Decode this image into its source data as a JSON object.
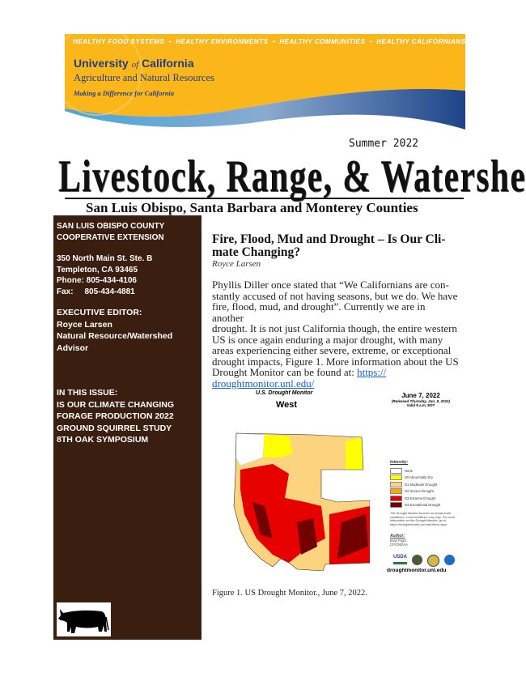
{
  "header": {
    "taglines": [
      "HEALTHY FOOD SYSTEMS",
      "HEALTHY ENVIRONMENTS",
      "HEALTHY COMMUNITIES",
      "HEALTHY CALIFORNIANS"
    ],
    "org_name_part1": "University",
    "org_name_of": "of",
    "org_name_part2": "California",
    "division": "Agriculture and Natural Resources",
    "motto": "Making a Difference for California",
    "colors": {
      "gold": "#fbb71a",
      "blue": "#1f3f86"
    }
  },
  "masthead": {
    "season": "Summer 2022",
    "title": "Livestock, Range, & Watershed",
    "subtitle": "San Luis Obispo, Santa Barbara and Monterey Counties"
  },
  "sidebar": {
    "background": "#3a1e10",
    "office_lines": [
      "SAN LUIS OBISPO COUNTY",
      "COOPERATIVE EXTENSION"
    ],
    "address_lines": [
      "350 North Main St. Ste. B",
      "Templeton, CA 93465",
      "Phone: 805-434-4106",
      "Fax:     805-434-4881"
    ],
    "editor_lines": [
      "EXECUTIVE EDITOR:",
      "Royce Larsen",
      "Natural Resource/Watershed",
      "Advisor"
    ],
    "issue_heading": "IN THIS ISSUE:",
    "issue_items": [
      "IS OUR CLIMATE CHANGING",
      "FORAGE PRODUCTION 2022",
      "GROUND SQUIRREL STUDY",
      "8TH OAK SYMPOSIUM"
    ],
    "logo_icon": "cow-icon"
  },
  "article": {
    "heading_line1": "Fire, Flood, Mud and Drought – Is Our Cli-",
    "heading_line2": "mate Changing?",
    "author": "Royce Larsen",
    "body_lines": [
      "Phyllis Diller once stated that “We Californians are con-",
      "stantly accused of not having seasons, but we do. We have",
      "fire, flood, mud, and drought”. Currently we are in another",
      "drought. It is not just California though, the entire western",
      "US is once again enduring a major drought, with many",
      "areas experiencing either severe, extreme, or exceptional",
      "drought impacts, Figure 1. More information about the US",
      "Drought Monitor can be found at: "
    ],
    "link_part1": "https://",
    "link_part2": "droughtmonitor.unl.edu/",
    "caption": "Figure 1. US Drought Monitor., June 7, 2022."
  },
  "figure": {
    "title": "U.S. Drought Monitor",
    "region": "West",
    "date": "June 7, 2022",
    "released": "(Released Thursday, Jun. 9, 2022)",
    "valid": "Valid 8 a.m. EDT",
    "legend_title": "Intensity:",
    "legend": [
      {
        "label": "None",
        "color": "#ffffff"
      },
      {
        "label": "D0 Abnormally Dry",
        "color": "#ffff00"
      },
      {
        "label": "D1 Moderate Drought",
        "color": "#fcd37f"
      },
      {
        "label": "D2 Severe Drought",
        "color": "#ffaa00"
      },
      {
        "label": "D3 Extreme Drought",
        "color": "#e60000"
      },
      {
        "label": "D4 Exceptional Drought",
        "color": "#730000"
      }
    ],
    "note": "The Drought Monitor focuses on broad-scale conditions. Local conditions may vary. For more information on the Drought Monitor, go to https://droughtmonitor.unl.edu/About.aspx",
    "author_label": "Author:",
    "author_lines": [
      "Brad Pugh",
      "CPC/NOAA"
    ],
    "logo_text": "USDA",
    "url": "droughtmonitor.unl.edu"
  }
}
